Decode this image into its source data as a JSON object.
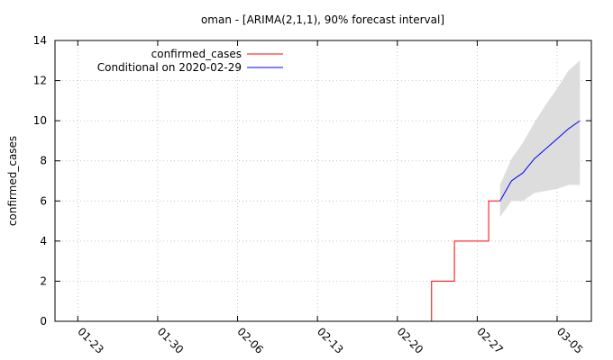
{
  "chart_data": {
    "type": "line",
    "title": "oman -  [ARIMA(2,1,1), 90% forecast interval]",
    "xlabel": "",
    "ylabel": "confirmed_cases",
    "x_axis": {
      "type": "date",
      "range": [
        "2020-01-21",
        "2020-03-08"
      ],
      "tick_labels": [
        "01-23",
        "01-30",
        "02-06",
        "02-13",
        "02-20",
        "02-27",
        "03-05"
      ],
      "tick_dates": [
        "2020-01-23",
        "2020-01-30",
        "2020-02-06",
        "2020-02-13",
        "2020-02-20",
        "2020-02-27",
        "2020-03-05"
      ]
    },
    "y_axis": {
      "range": [
        0,
        14
      ],
      "ticks": [
        0,
        2,
        4,
        6,
        8,
        10,
        12,
        14
      ]
    },
    "grid": true,
    "legend_position": "top-left",
    "series": [
      {
        "name": "confirmed_cases",
        "color": "#ff0000",
        "style": "step",
        "x": [
          "2020-02-23",
          "2020-02-24",
          "2020-02-25",
          "2020-02-26",
          "2020-02-27",
          "2020-02-28",
          "2020-02-29"
        ],
        "y": [
          0,
          2,
          2,
          4,
          4,
          4,
          6
        ]
      },
      {
        "name": "Conditional on 2020-02-29",
        "color": "#0000ff",
        "style": "line",
        "x": [
          "2020-02-29",
          "2020-03-01",
          "2020-03-02",
          "2020-03-03",
          "2020-03-04",
          "2020-03-05",
          "2020-03-06",
          "2020-03-07"
        ],
        "y": [
          6.0,
          7.0,
          7.4,
          8.1,
          8.6,
          9.1,
          9.6,
          10.0
        ]
      }
    ],
    "forecast_interval": {
      "level": "90%",
      "color": "#dddddd",
      "x": [
        "2020-02-29",
        "2020-03-01",
        "2020-03-02",
        "2020-03-03",
        "2020-03-04",
        "2020-03-05",
        "2020-03-06",
        "2020-03-07"
      ],
      "lower": [
        5.2,
        6.0,
        6.0,
        6.4,
        6.5,
        6.6,
        6.8,
        6.8
      ],
      "upper": [
        6.8,
        8.1,
        8.9,
        9.9,
        10.8,
        11.6,
        12.5,
        13.0
      ]
    }
  }
}
